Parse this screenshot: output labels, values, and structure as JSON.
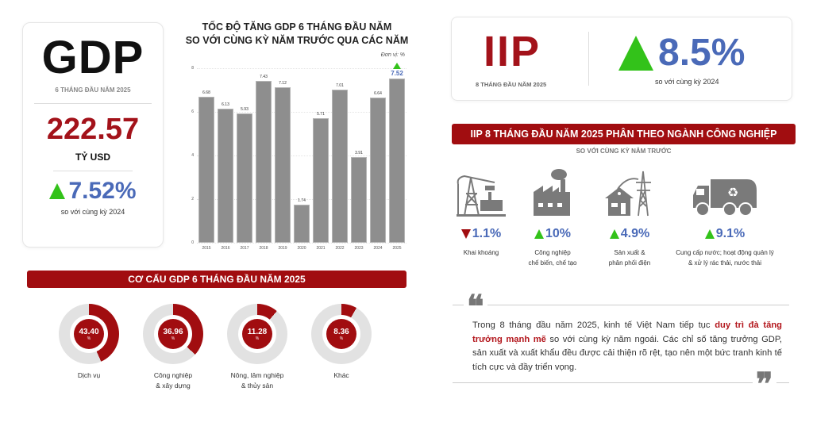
{
  "gdp_card": {
    "title": "GDP",
    "period": "6 THÁNG ĐẦU NĂM 2025",
    "value": "222.57",
    "unit": "TỶ USD",
    "growth": "7.52%",
    "growth_direction": "up",
    "growth_note": "so với cùng kỳ 2024"
  },
  "gdp_chart": {
    "title_line1": "TỐC ĐỘ TĂNG GDP 6 THÁNG ĐẦU NĂM",
    "title_line2": "SO VỚI CÙNG KỲ NĂM TRƯỚC QUA CÁC NĂM",
    "unit": "Đơn vị: %",
    "yticks": [
      "0",
      "2",
      "4",
      "6",
      "8"
    ]
  },
  "chart_data": {
    "type": "bar",
    "title": "TỐC ĐỘ TĂNG GDP 6 THÁNG ĐẦU NĂM SO VỚI CÙNG KỲ NĂM TRƯỚC QUA CÁC NĂM",
    "xlabel": "",
    "ylabel": "Đơn vị: %",
    "ylim": [
      0,
      8
    ],
    "yticks": [
      0,
      2,
      4,
      6,
      8
    ],
    "grid": true,
    "categories": [
      "2015",
      "2016",
      "2017",
      "2018",
      "2019",
      "2020",
      "2021",
      "2022",
      "2023",
      "2024",
      "2025"
    ],
    "values": [
      6.68,
      6.13,
      5.93,
      7.43,
      7.12,
      1.74,
      5.71,
      7.01,
      3.91,
      6.64,
      7.52
    ],
    "labels": [
      "6.68",
      "6.13",
      "5.93",
      "7.43",
      "7.12",
      "1.74",
      "5.71",
      "7.01",
      "3.91",
      "6.64",
      "7.52"
    ],
    "highlight": {
      "category": "2025",
      "color": "#4a6ab8",
      "marker": "green-up-triangle"
    },
    "bar_color": "#8e8e8e"
  },
  "gdp_structure": {
    "banner": "CƠ CẤU GDP 6 THÁNG ĐẦU NĂM 2025",
    "items": [
      {
        "value": "43.40",
        "pct_symbol": "%",
        "label_line1": "Dịch vụ",
        "label_line2": "",
        "share": 43.4
      },
      {
        "value": "36.96",
        "pct_symbol": "%",
        "label_line1": "Công nghiệp",
        "label_line2": "& xây dựng",
        "share": 36.96
      },
      {
        "value": "11.28",
        "pct_symbol": "%",
        "label_line1": "Nông, lâm nghiệp",
        "label_line2": "& thủy sản",
        "share": 11.28
      },
      {
        "value": "8.36",
        "pct_symbol": "%",
        "label_line1": "Khác",
        "label_line2": "",
        "share": 8.36
      }
    ]
  },
  "iip_card": {
    "title": "IIP",
    "period": "8 THÁNG ĐẦU NĂM 2025",
    "growth": "8.5%",
    "growth_direction": "up",
    "growth_note": "so với cùng kỳ 2024"
  },
  "iip_sectors": {
    "banner": "IIP 8 THÁNG ĐẦU NĂM 2025 PHÂN THEO NGÀNH CÔNG NGHIỆP",
    "subtitle": "SO VỚI CÙNG KỲ NĂM TRƯỚC",
    "items": [
      {
        "icon": "oil-pump-icon",
        "value": "1.1%",
        "direction": "down",
        "label_line1": "Khai khoáng",
        "label_line2": ""
      },
      {
        "icon": "factory-icon",
        "value": "10%",
        "direction": "up",
        "label_line1": "Công nghiệp",
        "label_line2": "chế biến, chế tạo"
      },
      {
        "icon": "power-tower-house-icon",
        "value": "4.9%",
        "direction": "up",
        "label_line1": "Sản xuất &",
        "label_line2": "phân phối điện"
      },
      {
        "icon": "recycling-truck-icon",
        "value": "9.1%",
        "direction": "up",
        "label_line1": "Cung cấp nước; hoạt động quản lý",
        "label_line2": "& xử lý rác thải, nước thải"
      }
    ]
  },
  "quote": {
    "open_mark": "❝",
    "close_mark": "❞",
    "text_before": "Trong 8 tháng đầu năm 2025, kinh tế Việt Nam tiếp tục ",
    "text_highlight": "duy trì đà tăng trưởng mạnh mẽ",
    "text_after": " so với cùng kỳ năm ngoái. Các chỉ số tăng trưởng GDP, sản xuất và xuất khẩu đều được cải thiện rõ rệt, tạo nên một bức tranh kinh tế tích cực và đầy triển vọng."
  },
  "colors": {
    "brand_red": "#a10d10",
    "value_red": "#a3121a",
    "growth_blue": "#4a6ab8",
    "up_green": "#33c21a",
    "bar_gray": "#8e8e8e",
    "donut_track": "#e2e2e2"
  }
}
